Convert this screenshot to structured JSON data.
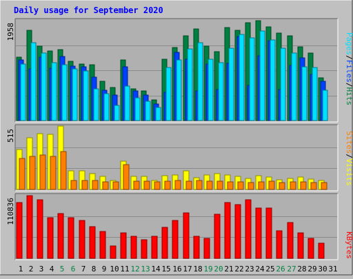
{
  "title": "Daily usage for September 2020",
  "colors": {
    "background": "#c0c0c0",
    "plot": "#b0b0b0",
    "hits": "#008040",
    "files": "#0040ff",
    "pages": "#00e0ff",
    "visits": "#ffff00",
    "sites": "#ff8000",
    "kbytes": "#ff0000",
    "title_text": "#0000ff",
    "weekend_label": "#008040"
  },
  "legend": {
    "pages": "Pages",
    "files": "Files",
    "hits": "Hits",
    "sites": "Sites",
    "visits": "Visits",
    "kbytes": "KBytes",
    "sep": "/"
  },
  "chart_data": {
    "type": "bar",
    "title": "Daily usage for September 2020",
    "x": [
      "1",
      "2",
      "3",
      "4",
      "5",
      "6",
      "7",
      "8",
      "9",
      "10",
      "11",
      "12",
      "13",
      "14",
      "15",
      "16",
      "17",
      "18",
      "19",
      "20",
      "21",
      "22",
      "23",
      "24",
      "25",
      "26",
      "27",
      "28",
      "29",
      "30",
      "31"
    ],
    "weekend_days": [
      "5",
      "6",
      "12",
      "13",
      "19",
      "20",
      "26",
      "27"
    ],
    "panels": [
      {
        "name": "hits_files_pages",
        "ymax_label": "1958",
        "ymax": 1958,
        "series": [
          {
            "name": "Hits",
            "values": [
              1230,
              1760,
              1450,
              1360,
              1380,
              1150,
              1100,
              1090,
              760,
              640,
              1180,
              620,
              580,
              400,
              1200,
              1420,
              1650,
              1780,
              1450,
              1340,
              1810,
              1760,
              1900,
              1950,
              1820,
              1700,
              1650,
              1430,
              1320,
              830,
              0
            ]
          },
          {
            "name": "Files",
            "values": [
              1180,
              1000,
              1240,
              1020,
              1250,
              1060,
              1040,
              850,
              590,
              500,
              1050,
              580,
              490,
              320,
              550,
              1330,
              1200,
              570,
              1100,
              610,
              1110,
              1640,
              680,
              1260,
              1560,
              610,
              1070,
              1220,
              900,
              760,
              0
            ]
          },
          {
            "name": "Pages",
            "values": [
              1100,
              1520,
              1310,
              1120,
              1080,
              1000,
              970,
              620,
              520,
              300,
              670,
              440,
              380,
              260,
              1030,
              1180,
              1390,
              1510,
              1200,
              1130,
              1410,
              1670,
              1610,
              1740,
              1570,
              1410,
              1310,
              1050,
              1030,
              590,
              0
            ]
          }
        ]
      },
      {
        "name": "visits_sites",
        "ymax_label": "515",
        "ymax": 515,
        "series": [
          {
            "name": "Visits",
            "values": [
              325,
              420,
              455,
              450,
              515,
              150,
              150,
              130,
              105,
              70,
              230,
              105,
              105,
              70,
              110,
              120,
              150,
              95,
              120,
              130,
              115,
              105,
              90,
              110,
              100,
              80,
              90,
              100,
              85,
              75,
              0
            ]
          },
          {
            "name": "Sites",
            "values": [
              250,
              270,
              280,
              270,
              310,
              70,
              70,
              70,
              60,
              60,
              200,
              65,
              65,
              60,
              65,
              70,
              65,
              70,
              65,
              65,
              60,
              60,
              55,
              60,
              65,
              55,
              60,
              60,
              55,
              55,
              0
            ]
          }
        ]
      },
      {
        "name": "kbytes",
        "ymax_label": "110836",
        "ymax": 110836,
        "series": [
          {
            "name": "KBytes",
            "values": [
              98000,
              110000,
              103000,
              71000,
              78000,
              71000,
              66000,
              55000,
              47000,
              22000,
              45000,
              39000,
              32000,
              38000,
              54000,
              66000,
              79000,
              39000,
              35000,
              77000,
              98000,
              94000,
              102000,
              88000,
              88000,
              48000,
              63000,
              45000,
              35000,
              26000,
              0
            ]
          }
        ]
      }
    ]
  }
}
